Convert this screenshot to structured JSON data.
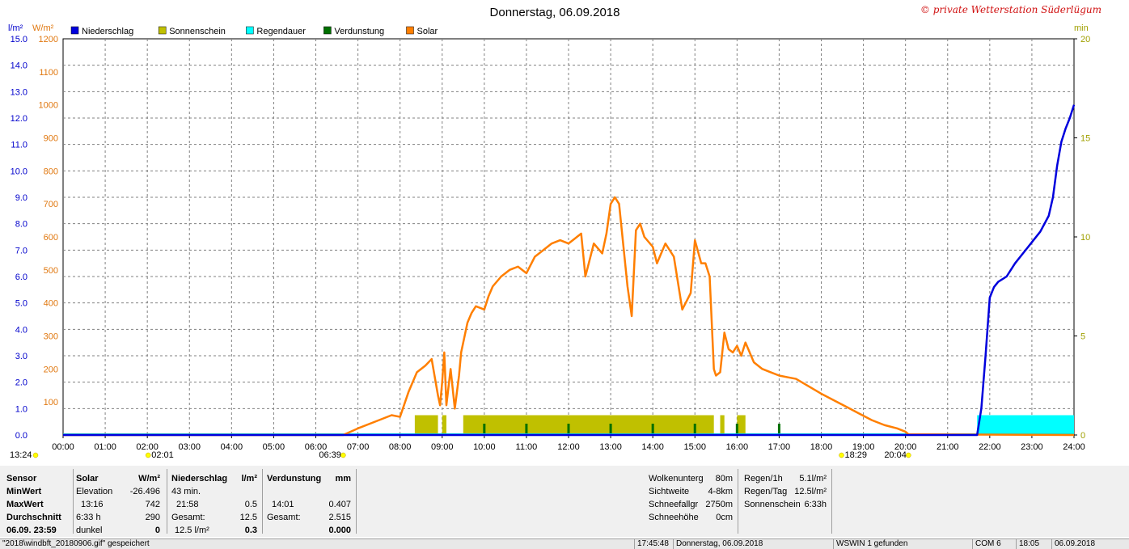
{
  "chart_data": {
    "type": "line",
    "title": "Donnerstag, 06.09.2018",
    "copyright": "© private Wetterstation Süderlügum",
    "axes": {
      "left_outer": {
        "unit": "l/m²",
        "min": 0,
        "max": 15,
        "ticks": [
          "0.0",
          "1.0",
          "2.0",
          "3.0",
          "4.0",
          "5.0",
          "6.0",
          "7.0",
          "8.0",
          "9.0",
          "10.0",
          "11.0",
          "12.0",
          "13.0",
          "14.0",
          "15.0"
        ],
        "color": "#0000cc"
      },
      "left_inner": {
        "unit": "W/m²",
        "min": 0,
        "max": 1200,
        "ticks": [
          "100",
          "200",
          "300",
          "400",
          "500",
          "600",
          "700",
          "800",
          "900",
          "1000",
          "1100",
          "1200"
        ],
        "color": "#e07810"
      },
      "right": {
        "unit": "min",
        "min": 0,
        "max": 20,
        "ticks": [
          "0",
          "5",
          "10",
          "15",
          "20"
        ],
        "color": "#a0a000"
      },
      "x": {
        "unit": "hour",
        "min": 0,
        "max": 24,
        "ticks": [
          "00:00",
          "01:00",
          "02:00",
          "03:00",
          "04:00",
          "05:00",
          "06:00",
          "07:00",
          "08:00",
          "09:00",
          "10:00",
          "11:00",
          "12:00",
          "13:00",
          "14:00",
          "15:00",
          "16:00",
          "17:00",
          "18:00",
          "19:00",
          "20:00",
          "21:00",
          "22:00",
          "23:00",
          "24:00"
        ]
      },
      "grid": true
    },
    "legend": [
      {
        "name": "Niederschlag",
        "color": "#0000dd"
      },
      {
        "name": "Sonnenschein",
        "color": "#c0c000"
      },
      {
        "name": "Regendauer",
        "color": "#00ffff"
      },
      {
        "name": "Verdunstung",
        "color": "#007000"
      },
      {
        "name": "Solar",
        "color": "#ff7f00"
      }
    ],
    "markers": [
      {
        "label": "13:24",
        "hour": 0
      },
      {
        "label": "02:01",
        "hour": 2.02
      },
      {
        "label": "06:39",
        "hour": 6.65
      },
      {
        "label": "18:29",
        "hour": 18.48
      },
      {
        "label": "20:04",
        "hour": 20.07
      }
    ],
    "solar": {
      "name": "Solar",
      "unit": "W/m²",
      "x": [
        0,
        6.65,
        7.0,
        7.5,
        7.8,
        8.0,
        8.2,
        8.4,
        8.6,
        8.75,
        8.9,
        8.95,
        9.0,
        9.05,
        9.1,
        9.2,
        9.3,
        9.4,
        9.45,
        9.6,
        9.7,
        9.8,
        10.0,
        10.1,
        10.2,
        10.4,
        10.6,
        10.8,
        11.0,
        11.2,
        11.4,
        11.6,
        11.8,
        12.0,
        12.1,
        12.3,
        12.4,
        12.6,
        12.8,
        12.9,
        13.0,
        13.1,
        13.2,
        13.4,
        13.5,
        13.6,
        13.7,
        13.8,
        14.0,
        14.1,
        14.3,
        14.5,
        14.7,
        14.9,
        15.0,
        15.15,
        15.25,
        15.35,
        15.45,
        15.5,
        15.6,
        15.7,
        15.8,
        15.9,
        16.0,
        16.1,
        16.2,
        16.4,
        16.6,
        16.8,
        17.0,
        17.2,
        17.4,
        17.6,
        17.8,
        18.0,
        18.3,
        18.6,
        18.9,
        19.2,
        19.5,
        19.8,
        20.0,
        20.07,
        24
      ],
      "values": [
        0,
        0,
        20,
        45,
        60,
        55,
        130,
        190,
        210,
        230,
        120,
        90,
        160,
        250,
        90,
        200,
        80,
        180,
        250,
        340,
        370,
        390,
        380,
        420,
        450,
        480,
        500,
        510,
        490,
        540,
        560,
        580,
        590,
        580,
        590,
        610,
        480,
        580,
        550,
        610,
        700,
        720,
        700,
        450,
        360,
        620,
        640,
        600,
        570,
        520,
        580,
        540,
        380,
        430,
        590,
        520,
        520,
        480,
        200,
        180,
        190,
        310,
        260,
        250,
        270,
        240,
        280,
        220,
        200,
        190,
        180,
        175,
        170,
        155,
        140,
        125,
        105,
        85,
        65,
        45,
        30,
        20,
        10,
        2,
        0
      ]
    },
    "niederschlag": {
      "name": "Niederschlag",
      "unit": "l/m²",
      "x": [
        0,
        21.7,
        21.8,
        21.9,
        22.0,
        22.1,
        22.2,
        22.4,
        22.6,
        22.8,
        23.0,
        23.2,
        23.4,
        23.5,
        23.6,
        23.7,
        23.8,
        23.9,
        24.0
      ],
      "values": [
        0,
        0,
        1.0,
        3.0,
        5.2,
        5.6,
        5.8,
        6.0,
        6.5,
        6.9,
        7.3,
        7.7,
        8.3,
        9.0,
        10.2,
        11.1,
        11.6,
        12.0,
        12.5
      ]
    },
    "sonnenschein_blocks": [
      {
        "from": 8.35,
        "to": 8.9
      },
      {
        "from": 9.0,
        "to": 9.1
      },
      {
        "from": 9.5,
        "to": 15.45
      },
      {
        "from": 15.6,
        "to": 15.7
      },
      {
        "from": 16.0,
        "to": 16.2
      }
    ],
    "regendauer_blocks": [
      {
        "from": 21.7,
        "to": 24.0
      }
    ],
    "verdunstung_ticks": [
      10.0,
      11.0,
      12.0,
      13.0,
      14.0,
      15.0,
      16.0,
      17.0
    ]
  },
  "panel": {
    "sensor": {
      "header": "Sensor",
      "min": "MinWert",
      "max": "MaxWert",
      "avg": "Durchschnitt",
      "date": "06.09. 23:59"
    },
    "solar": {
      "header": "Solar",
      "header_unit": "W/m²",
      "r1a": "Elevation",
      "r1b": "-26.496",
      "r2a": "13:16",
      "r2b": "742",
      "r3a": "6:33 h",
      "r3b": "290",
      "r4a": "dunkel",
      "r4b": "0"
    },
    "rain": {
      "header": "Niederschlag",
      "header_unit": "l/m²",
      "r1a": "43 min.",
      "r2a": "21:58",
      "r2b": "0.5",
      "r3a": "Gesamt:",
      "r3b": "12.5",
      "r4a": "12.5 l/m²",
      "r4b": "0.3"
    },
    "evap": {
      "header": "Verdunstung",
      "header_unit": "mm",
      "r2a": "14:01",
      "r2b": "0.407",
      "r3a": "Gesamt:",
      "r3b": "2.515",
      "r4b": "0.000"
    },
    "clouds": [
      {
        "k": "Wolkenunterg",
        "v": "80m"
      },
      {
        "k": "Sichtweite",
        "v": "4-8km"
      },
      {
        "k": "Schneefallgr",
        "v": "2750m"
      },
      {
        "k": "Schneehöhe",
        "v": "0cm"
      }
    ],
    "rainsum": [
      {
        "k": "Regen/1h",
        "v": "5.1l/m²"
      },
      {
        "k": "Regen/Tag",
        "v": "12.5l/m²"
      },
      {
        "k": "Sonnenschein",
        "v": "6:33h"
      }
    ]
  },
  "status": {
    "file": "\"2018\\windbft_20180906.gif\" gespeichert",
    "time": "17:45:48",
    "date": "Donnerstag, 06.09.2018",
    "found": "WSWIN 1 gefunden",
    "com": "COM 6",
    "clock": "18:05",
    "day": "06.09.2018"
  }
}
